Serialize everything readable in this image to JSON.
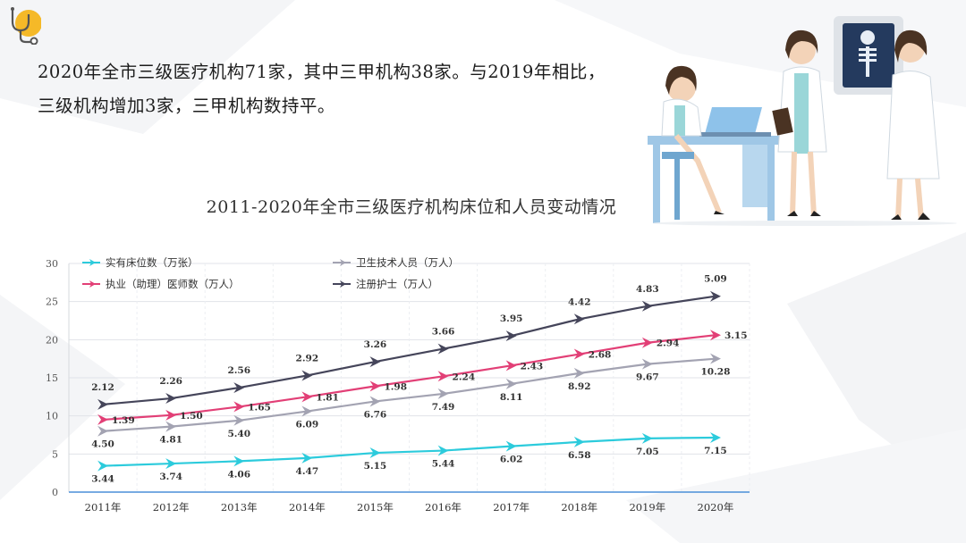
{
  "intro_text": "2020年全市三级医疗机构71家，其中三甲机构38家。与2019年相比，三级机构增加3家，三甲机构数持平。",
  "colors": {
    "beds": "#2ccbdc",
    "tech": "#a3a3b2",
    "doctors": "#e23f76",
    "nurses": "#45455a",
    "axis": "#4a8fd8"
  },
  "chart_data": {
    "type": "line",
    "title": "2011-2020年全市三级医疗机构床位和人员变动情况",
    "categories": [
      "2011年",
      "2012年",
      "2013年",
      "2014年",
      "2015年",
      "2016年",
      "2017年",
      "2018年",
      "2019年",
      "2020年"
    ],
    "ylim": [
      0,
      30
    ],
    "yticks": [
      0,
      5,
      10,
      15,
      20,
      25,
      30
    ],
    "grid": true,
    "legend_position": "top-left",
    "series": [
      {
        "key": "beds",
        "name": "实有床位数（万张）",
        "color": "#2ccbdc",
        "plot": [
          3.44,
          3.74,
          4.06,
          4.47,
          5.15,
          5.44,
          6.02,
          6.58,
          7.05,
          7.15
        ],
        "labels": [
          "3.44",
          "3.74",
          "4.06",
          "4.47",
          "5.15",
          "5.44",
          "6.02",
          "6.58",
          "7.05",
          "7.15"
        ]
      },
      {
        "key": "tech",
        "name": "卫生技术人员（万人）",
        "color": "#a3a3b2",
        "plot": [
          8.0,
          8.6,
          9.4,
          10.6,
          11.9,
          12.9,
          14.2,
          15.6,
          16.8,
          17.5
        ],
        "labels": [
          "4.50",
          "4.81",
          "5.40",
          "6.09",
          "6.76",
          "7.49",
          "8.11",
          "8.92",
          "9.67",
          "10.28"
        ]
      },
      {
        "key": "doctors",
        "name": "执业（助理）医师数（万人）",
        "color": "#e23f76",
        "plot": [
          9.5,
          10.1,
          11.2,
          12.5,
          13.9,
          15.2,
          16.6,
          18.1,
          19.6,
          20.6
        ],
        "labels": [
          "1.39",
          "1.50",
          "1.65",
          "1.81",
          "1.98",
          "2.24",
          "2.43",
          "2.68",
          "2.94",
          "3.15"
        ]
      },
      {
        "key": "nurses",
        "name": "注册护士（万人）",
        "color": "#45455a",
        "plot": [
          11.5,
          12.3,
          13.7,
          15.3,
          17.1,
          18.8,
          20.5,
          22.7,
          24.4,
          25.7
        ],
        "labels": [
          "2.12",
          "2.26",
          "2.56",
          "2.92",
          "3.26",
          "3.66",
          "3.95",
          "4.42",
          "4.83",
          "5.09"
        ]
      }
    ]
  }
}
